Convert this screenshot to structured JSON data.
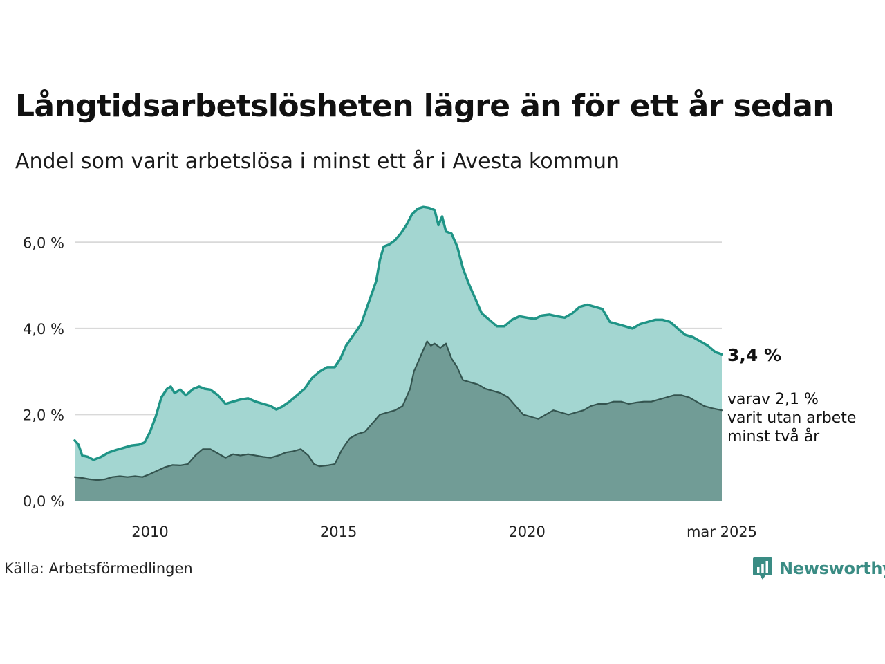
{
  "title": "Långtidsarbetslösheten lägre än för ett år sedan",
  "subtitle": "Andel som varit arbetslösa i minst ett år i Avesta kommun",
  "source": "Källa: Arbetsförmedlingen",
  "brand": "Newsworthy",
  "colors": {
    "area_total": "#a3d6d1",
    "line_total": "#1f9486",
    "area_two_years": "#719c96",
    "line_two_years": "#34544f",
    "grid": "#d9d9d9",
    "brand": "#3a8c84"
  },
  "annotations": {
    "end_value": "3,4 %",
    "sub_line1": "varav 2,1 %",
    "sub_line2": "varit utan arbete",
    "sub_line3": "minst två år"
  },
  "chart_data": {
    "type": "area",
    "x_range": [
      2008.0,
      2025.17
    ],
    "ylim": [
      0,
      7.0
    ],
    "y_ticks": [
      0,
      2,
      4,
      6
    ],
    "y_tick_labels": [
      "0,0 %",
      "2,0 %",
      "4,0 %",
      "6,0 %"
    ],
    "x_ticks": [
      2010,
      2015,
      2020,
      2025.17
    ],
    "x_tick_labels": [
      "2010",
      "2015",
      "2020",
      "mar 2025"
    ],
    "grid": true,
    "series": [
      {
        "name": "",
        "points": [
          [
            2008.0,
            1.4
          ],
          [
            2008.1,
            1.3
          ],
          [
            2008.2,
            1.05
          ],
          [
            2008.35,
            1.02
          ],
          [
            2008.5,
            0.95
          ],
          [
            2008.7,
            1.02
          ],
          [
            2008.9,
            1.12
          ],
          [
            2009.1,
            1.18
          ],
          [
            2009.3,
            1.23
          ],
          [
            2009.5,
            1.28
          ],
          [
            2009.7,
            1.3
          ],
          [
            2009.85,
            1.35
          ],
          [
            2010.0,
            1.6
          ],
          [
            2010.15,
            1.95
          ],
          [
            2010.3,
            2.4
          ],
          [
            2010.45,
            2.6
          ],
          [
            2010.55,
            2.65
          ],
          [
            2010.65,
            2.5
          ],
          [
            2010.8,
            2.58
          ],
          [
            2010.95,
            2.45
          ],
          [
            2011.15,
            2.6
          ],
          [
            2011.3,
            2.65
          ],
          [
            2011.45,
            2.6
          ],
          [
            2011.6,
            2.58
          ],
          [
            2011.8,
            2.45
          ],
          [
            2012.0,
            2.25
          ],
          [
            2012.2,
            2.3
          ],
          [
            2012.4,
            2.35
          ],
          [
            2012.6,
            2.38
          ],
          [
            2012.8,
            2.3
          ],
          [
            2013.0,
            2.25
          ],
          [
            2013.2,
            2.2
          ],
          [
            2013.35,
            2.12
          ],
          [
            2013.5,
            2.18
          ],
          [
            2013.7,
            2.3
          ],
          [
            2013.9,
            2.45
          ],
          [
            2014.1,
            2.6
          ],
          [
            2014.3,
            2.85
          ],
          [
            2014.5,
            3.0
          ],
          [
            2014.7,
            3.1
          ],
          [
            2014.9,
            3.1
          ],
          [
            2015.05,
            3.3
          ],
          [
            2015.2,
            3.6
          ],
          [
            2015.4,
            3.85
          ],
          [
            2015.6,
            4.1
          ],
          [
            2015.8,
            4.6
          ],
          [
            2016.0,
            5.1
          ],
          [
            2016.1,
            5.6
          ],
          [
            2016.2,
            5.9
          ],
          [
            2016.35,
            5.95
          ],
          [
            2016.5,
            6.05
          ],
          [
            2016.65,
            6.2
          ],
          [
            2016.8,
            6.4
          ],
          [
            2016.95,
            6.65
          ],
          [
            2017.1,
            6.78
          ],
          [
            2017.25,
            6.82
          ],
          [
            2017.4,
            6.8
          ],
          [
            2017.55,
            6.75
          ],
          [
            2017.65,
            6.4
          ],
          [
            2017.75,
            6.6
          ],
          [
            2017.85,
            6.25
          ],
          [
            2018.0,
            6.2
          ],
          [
            2018.15,
            5.9
          ],
          [
            2018.3,
            5.4
          ],
          [
            2018.45,
            5.05
          ],
          [
            2018.6,
            4.75
          ],
          [
            2018.8,
            4.35
          ],
          [
            2019.0,
            4.2
          ],
          [
            2019.2,
            4.05
          ],
          [
            2019.4,
            4.05
          ],
          [
            2019.6,
            4.2
          ],
          [
            2019.8,
            4.28
          ],
          [
            2020.0,
            4.25
          ],
          [
            2020.2,
            4.22
          ],
          [
            2020.4,
            4.3
          ],
          [
            2020.6,
            4.32
          ],
          [
            2020.8,
            4.28
          ],
          [
            2021.0,
            4.25
          ],
          [
            2021.2,
            4.35
          ],
          [
            2021.4,
            4.5
          ],
          [
            2021.6,
            4.55
          ],
          [
            2021.8,
            4.5
          ],
          [
            2022.0,
            4.45
          ],
          [
            2022.2,
            4.15
          ],
          [
            2022.4,
            4.1
          ],
          [
            2022.6,
            4.05
          ],
          [
            2022.8,
            4.0
          ],
          [
            2023.0,
            4.1
          ],
          [
            2023.2,
            4.15
          ],
          [
            2023.4,
            4.2
          ],
          [
            2023.6,
            4.2
          ],
          [
            2023.8,
            4.15
          ],
          [
            2024.0,
            4.0
          ],
          [
            2024.2,
            3.85
          ],
          [
            2024.4,
            3.8
          ],
          [
            2024.6,
            3.7
          ],
          [
            2024.8,
            3.6
          ],
          [
            2025.0,
            3.45
          ],
          [
            2025.17,
            3.4
          ]
        ]
      },
      {
        "name": "",
        "points": [
          [
            2008.0,
            0.55
          ],
          [
            2008.2,
            0.53
          ],
          [
            2008.4,
            0.5
          ],
          [
            2008.6,
            0.48
          ],
          [
            2008.8,
            0.5
          ],
          [
            2009.0,
            0.55
          ],
          [
            2009.2,
            0.57
          ],
          [
            2009.4,
            0.55
          ],
          [
            2009.6,
            0.57
          ],
          [
            2009.8,
            0.55
          ],
          [
            2010.0,
            0.62
          ],
          [
            2010.2,
            0.7
          ],
          [
            2010.4,
            0.78
          ],
          [
            2010.6,
            0.83
          ],
          [
            2010.8,
            0.82
          ],
          [
            2011.0,
            0.85
          ],
          [
            2011.2,
            1.05
          ],
          [
            2011.4,
            1.2
          ],
          [
            2011.6,
            1.2
          ],
          [
            2011.8,
            1.1
          ],
          [
            2012.0,
            1.0
          ],
          [
            2012.2,
            1.08
          ],
          [
            2012.4,
            1.05
          ],
          [
            2012.6,
            1.08
          ],
          [
            2012.8,
            1.05
          ],
          [
            2013.0,
            1.02
          ],
          [
            2013.2,
            1.0
          ],
          [
            2013.4,
            1.05
          ],
          [
            2013.6,
            1.12
          ],
          [
            2013.8,
            1.15
          ],
          [
            2014.0,
            1.2
          ],
          [
            2014.2,
            1.05
          ],
          [
            2014.35,
            0.85
          ],
          [
            2014.5,
            0.8
          ],
          [
            2014.7,
            0.82
          ],
          [
            2014.9,
            0.85
          ],
          [
            2015.1,
            1.2
          ],
          [
            2015.3,
            1.45
          ],
          [
            2015.5,
            1.55
          ],
          [
            2015.7,
            1.6
          ],
          [
            2015.9,
            1.8
          ],
          [
            2016.1,
            2.0
          ],
          [
            2016.3,
            2.05
          ],
          [
            2016.5,
            2.1
          ],
          [
            2016.7,
            2.2
          ],
          [
            2016.9,
            2.6
          ],
          [
            2017.0,
            3.0
          ],
          [
            2017.1,
            3.2
          ],
          [
            2017.2,
            3.4
          ],
          [
            2017.35,
            3.7
          ],
          [
            2017.45,
            3.6
          ],
          [
            2017.55,
            3.65
          ],
          [
            2017.7,
            3.55
          ],
          [
            2017.85,
            3.65
          ],
          [
            2018.0,
            3.3
          ],
          [
            2018.15,
            3.1
          ],
          [
            2018.3,
            2.8
          ],
          [
            2018.5,
            2.75
          ],
          [
            2018.7,
            2.7
          ],
          [
            2018.9,
            2.6
          ],
          [
            2019.1,
            2.55
          ],
          [
            2019.3,
            2.5
          ],
          [
            2019.5,
            2.4
          ],
          [
            2019.7,
            2.2
          ],
          [
            2019.9,
            2.0
          ],
          [
            2020.1,
            1.95
          ],
          [
            2020.3,
            1.9
          ],
          [
            2020.5,
            2.0
          ],
          [
            2020.7,
            2.1
          ],
          [
            2020.9,
            2.05
          ],
          [
            2021.1,
            2.0
          ],
          [
            2021.3,
            2.05
          ],
          [
            2021.5,
            2.1
          ],
          [
            2021.7,
            2.2
          ],
          [
            2021.9,
            2.25
          ],
          [
            2022.1,
            2.25
          ],
          [
            2022.3,
            2.3
          ],
          [
            2022.5,
            2.3
          ],
          [
            2022.7,
            2.25
          ],
          [
            2022.9,
            2.28
          ],
          [
            2023.1,
            2.3
          ],
          [
            2023.3,
            2.3
          ],
          [
            2023.5,
            2.35
          ],
          [
            2023.7,
            2.4
          ],
          [
            2023.9,
            2.45
          ],
          [
            2024.1,
            2.45
          ],
          [
            2024.3,
            2.4
          ],
          [
            2024.5,
            2.3
          ],
          [
            2024.7,
            2.2
          ],
          [
            2024.9,
            2.15
          ],
          [
            2025.17,
            2.1
          ]
        ]
      }
    ]
  }
}
